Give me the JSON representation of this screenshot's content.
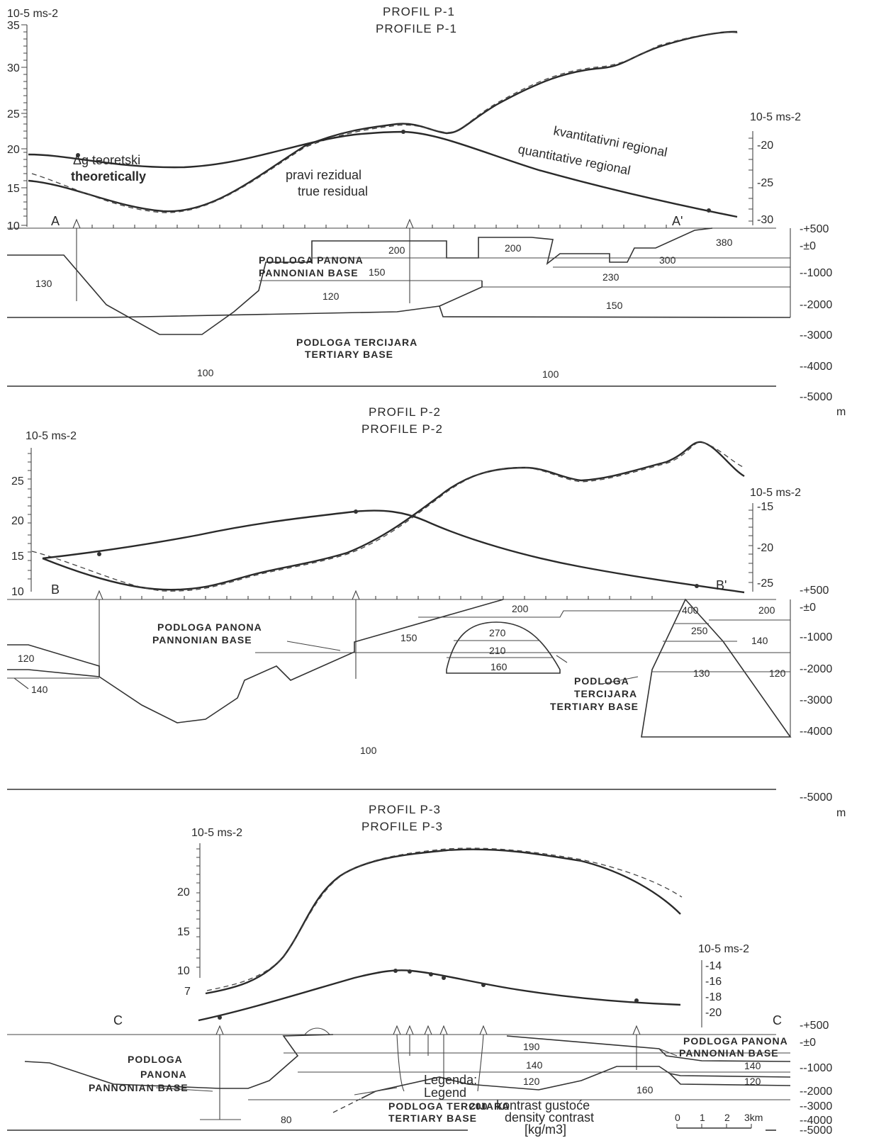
{
  "profiles": [
    {
      "title_hr": "PROFIL P-1",
      "title_en": "PROFILE P-1",
      "left_unit": "10-5 ms-2",
      "left_ticks": [
        "35",
        "30",
        "25",
        "20",
        "15",
        "10"
      ],
      "right_unit": "10-5 ms-2",
      "right_ticks": [
        "-20",
        "-25",
        "-30"
      ],
      "start_label": "A",
      "end_label": "A'",
      "curve_labels": {
        "theoretical_hr": "Δg teoretski",
        "theoretical_en": "theoretically",
        "residual_hr": "pravi rezidual",
        "residual_en": "true residual",
        "regional_hr": "kvantitativni regional",
        "regional_en": "quantitative regional"
      },
      "pannonian_hr": "PODLOGA PANONA",
      "pannonian_en": "PANNONIAN BASE",
      "tertiary_hr": "PODLOGA TERCIJARA",
      "tertiary_en": "TERTIARY BASE",
      "density_values": [
        "130",
        "200",
        "200",
        "380",
        "150",
        "300",
        "230",
        "120",
        "150",
        "100",
        "100"
      ]
    },
    {
      "title_hr": "PROFIL P-2",
      "title_en": "PROFILE P-2",
      "left_unit": "10-5 ms-2",
      "left_ticks": [
        "25",
        "20",
        "15",
        "10"
      ],
      "right_unit": "10-5 ms-2",
      "right_ticks": [
        "-15",
        "-20",
        "-25"
      ],
      "start_label": "B",
      "end_label": "B'",
      "pannonian_hr": "PODLOGA PANONA",
      "pannonian_en": "PANNONIAN BASE",
      "tertiary_hr": "PODLOGA",
      "tertiary_hr2": "TERCIJARA",
      "tertiary_en": "TERTIARY BASE",
      "density_values": [
        "200",
        "400",
        "200",
        "270",
        "150",
        "250",
        "210",
        "140",
        "120",
        "160",
        "130",
        "120",
        "140",
        "100"
      ]
    },
    {
      "title_hr": "PROFIL P-3",
      "title_en": "PROFILE P-3",
      "left_unit": "10-5 ms-2",
      "left_ticks": [
        "20",
        "15",
        "10",
        "7"
      ],
      "right_unit": "10-5 ms-2",
      "right_ticks": [
        "-14",
        "-16",
        "-18",
        "-20"
      ],
      "start_label": "C",
      "end_label": "C",
      "pannonian_hr": "PODLOGA PANONA",
      "pannonian_en": "PANNONIAN BASE",
      "pannonian_left_1": "PODLOGA",
      "pannonian_left_2": "PANONA",
      "pannonian_left_3": "PANNONIAN BASE",
      "tertiary_hr": "PODLOGA TERCIJARA",
      "tertiary_en": "TERTIARY BASE",
      "density_values": [
        "190",
        "140",
        "140",
        "120",
        "120",
        "160",
        "80"
      ]
    }
  ],
  "depth_scale": [
    "-+500",
    "-±0",
    "--1000",
    "--2000",
    "--3000",
    "--4000",
    "--5000"
  ],
  "depth_unit": "m",
  "legend": {
    "title_hr": "Legenda:",
    "title_en": "Legend",
    "sample_value": "200",
    "text_hr": "kontrast gustoće",
    "text_en": "density contrast",
    "unit": "[kg/m3]"
  },
  "scale_bar": {
    "ticks": [
      "0",
      "1",
      "2",
      "3km"
    ]
  }
}
